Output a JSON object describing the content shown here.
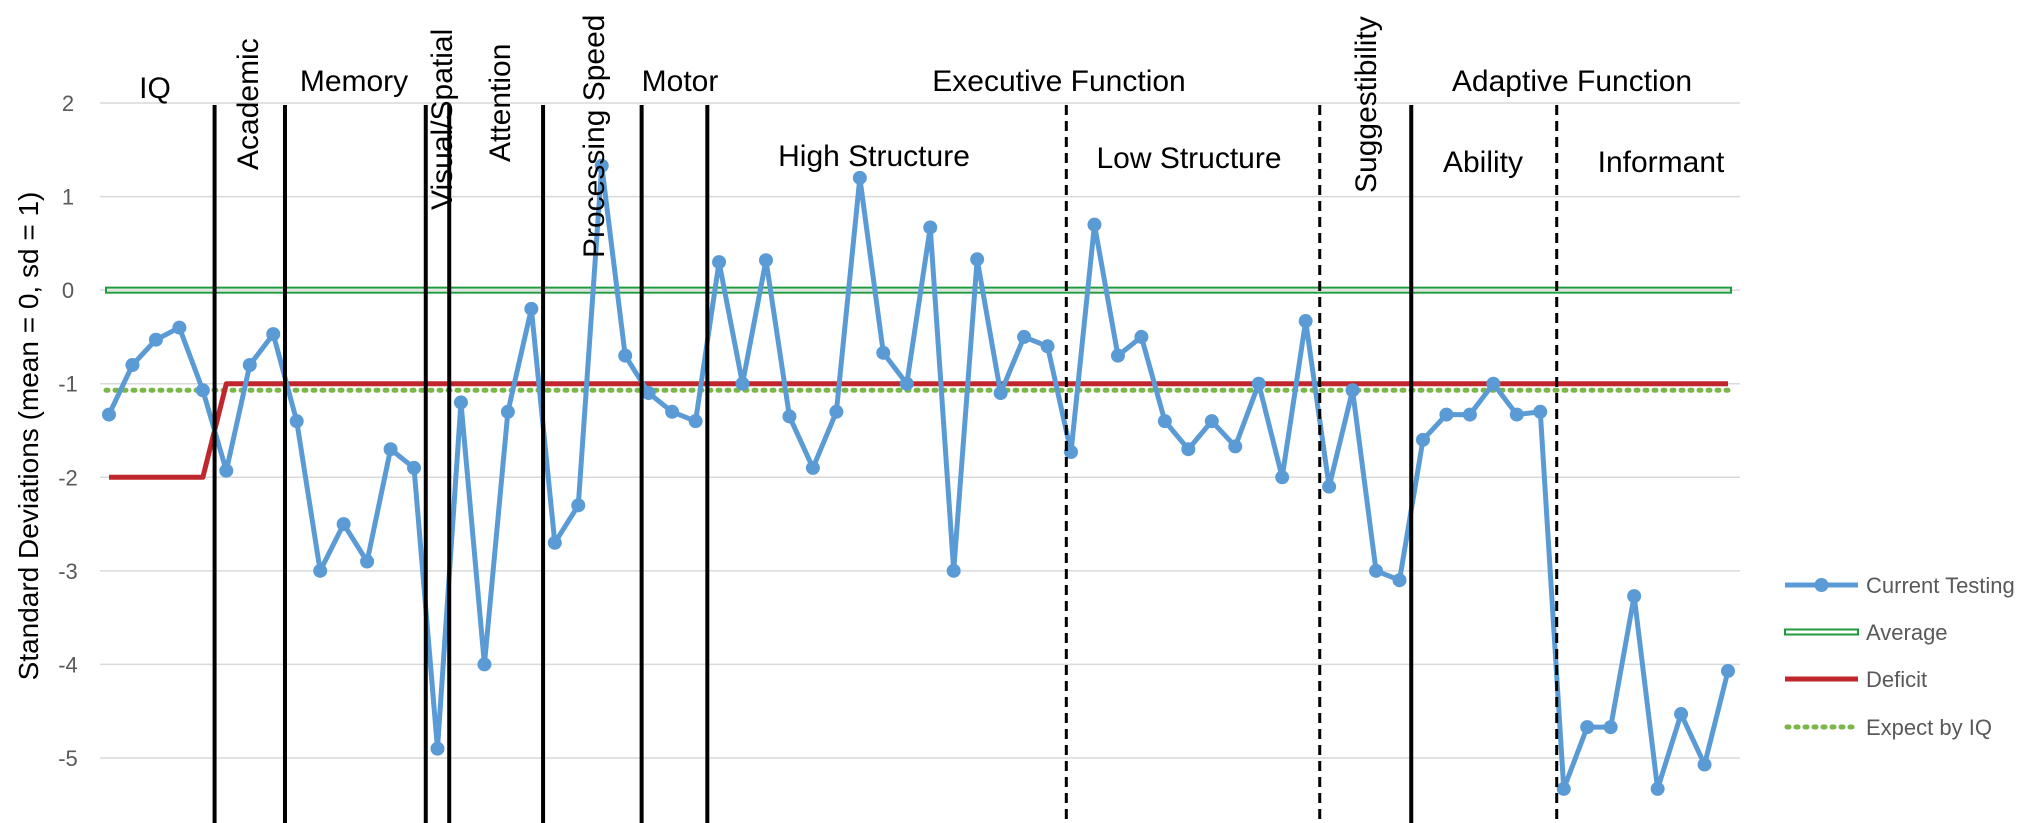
{
  "chart_data": {
    "type": "line",
    "ylabel": "Standard Deviations (mean = 0, sd = 1)",
    "ylim": [
      -5.5,
      2
    ],
    "yticks": [
      "2",
      "1",
      "0",
      "-1",
      "-2",
      "-3",
      "-4",
      "-5"
    ],
    "grid": true,
    "legend_position": "right",
    "colors": {
      "current": "#5b9bd5",
      "average": "#1e9b3e",
      "deficit": "#c0272d",
      "expect": "#7ab648",
      "divider": "#000000",
      "grid": "#d9d9d9"
    },
    "series": [
      {
        "name": "Current Testing",
        "values": [
          -1.33,
          -0.8,
          -0.53,
          -0.4,
          -1.07,
          -1.93,
          -0.8,
          -0.47,
          -1.4,
          -3.0,
          -2.5,
          -2.9,
          -1.7,
          -1.9,
          -4.9,
          -1.2,
          -4.0,
          -1.3,
          -0.2,
          -2.7,
          -2.3,
          1.33,
          -0.7,
          -1.1,
          -1.3,
          -1.4,
          0.3,
          -1.0,
          0.32,
          -1.35,
          -1.9,
          -1.3,
          1.2,
          -0.67,
          -1.0,
          0.67,
          -3.0,
          0.33,
          -1.1,
          -0.5,
          -0.6,
          -1.73,
          0.7,
          -0.7,
          -0.5,
          -1.4,
          -1.7,
          -1.4,
          -1.67,
          -1.0,
          -2.0,
          -0.33,
          -2.1,
          -1.07,
          -3.0,
          -3.1,
          -1.6,
          -1.33,
          -1.33,
          -1.0,
          -1.33,
          -1.3,
          -5.33,
          -4.67,
          -4.67,
          -3.27,
          -5.33,
          -4.53,
          -5.07,
          -4.07
        ]
      },
      {
        "name": "Average",
        "values": [
          0
        ]
      },
      {
        "name": "Deficit",
        "values": [
          -2,
          -2,
          -2,
          -2,
          -2,
          -1,
          -1
        ]
      },
      {
        "name": "Expect by IQ",
        "values": [
          -1.07
        ]
      }
    ],
    "sections": [
      {
        "label": "IQ",
        "rotated": false
      },
      {
        "label": "Academic",
        "rotated": true
      },
      {
        "label": "Memory",
        "rotated": false
      },
      {
        "label": "Visual/Spatial",
        "rotated": true
      },
      {
        "label": "Attention",
        "rotated": true
      },
      {
        "label": "Processing Speed",
        "rotated": true
      },
      {
        "label": "Motor",
        "rotated": false
      },
      {
        "label": "Executive Function",
        "rotated": false
      },
      {
        "label": "High Structure",
        "rotated": false
      },
      {
        "label": "Low Structure",
        "rotated": false
      },
      {
        "label": "Suggestibility",
        "rotated": true
      },
      {
        "label": "Adaptive Function",
        "rotated": false
      },
      {
        "label": "Ability",
        "rotated": false
      },
      {
        "label": "Informant",
        "rotated": false
      }
    ],
    "dividers": [
      {
        "after_point": 4.5,
        "style": "solid"
      },
      {
        "after_point": 7.5,
        "style": "solid"
      },
      {
        "after_point": 13.5,
        "style": "solid"
      },
      {
        "after_point": 14.5,
        "style": "solid"
      },
      {
        "after_point": 18.5,
        "style": "solid"
      },
      {
        "after_point": 22.7,
        "style": "solid"
      },
      {
        "after_point": 25.5,
        "style": "solid"
      },
      {
        "after_point": 40.8,
        "style": "dashed"
      },
      {
        "after_point": 51.6,
        "style": "dashed"
      },
      {
        "after_point": 55.5,
        "style": "solid"
      },
      {
        "after_point": 61.7,
        "style": "dashed"
      }
    ]
  }
}
